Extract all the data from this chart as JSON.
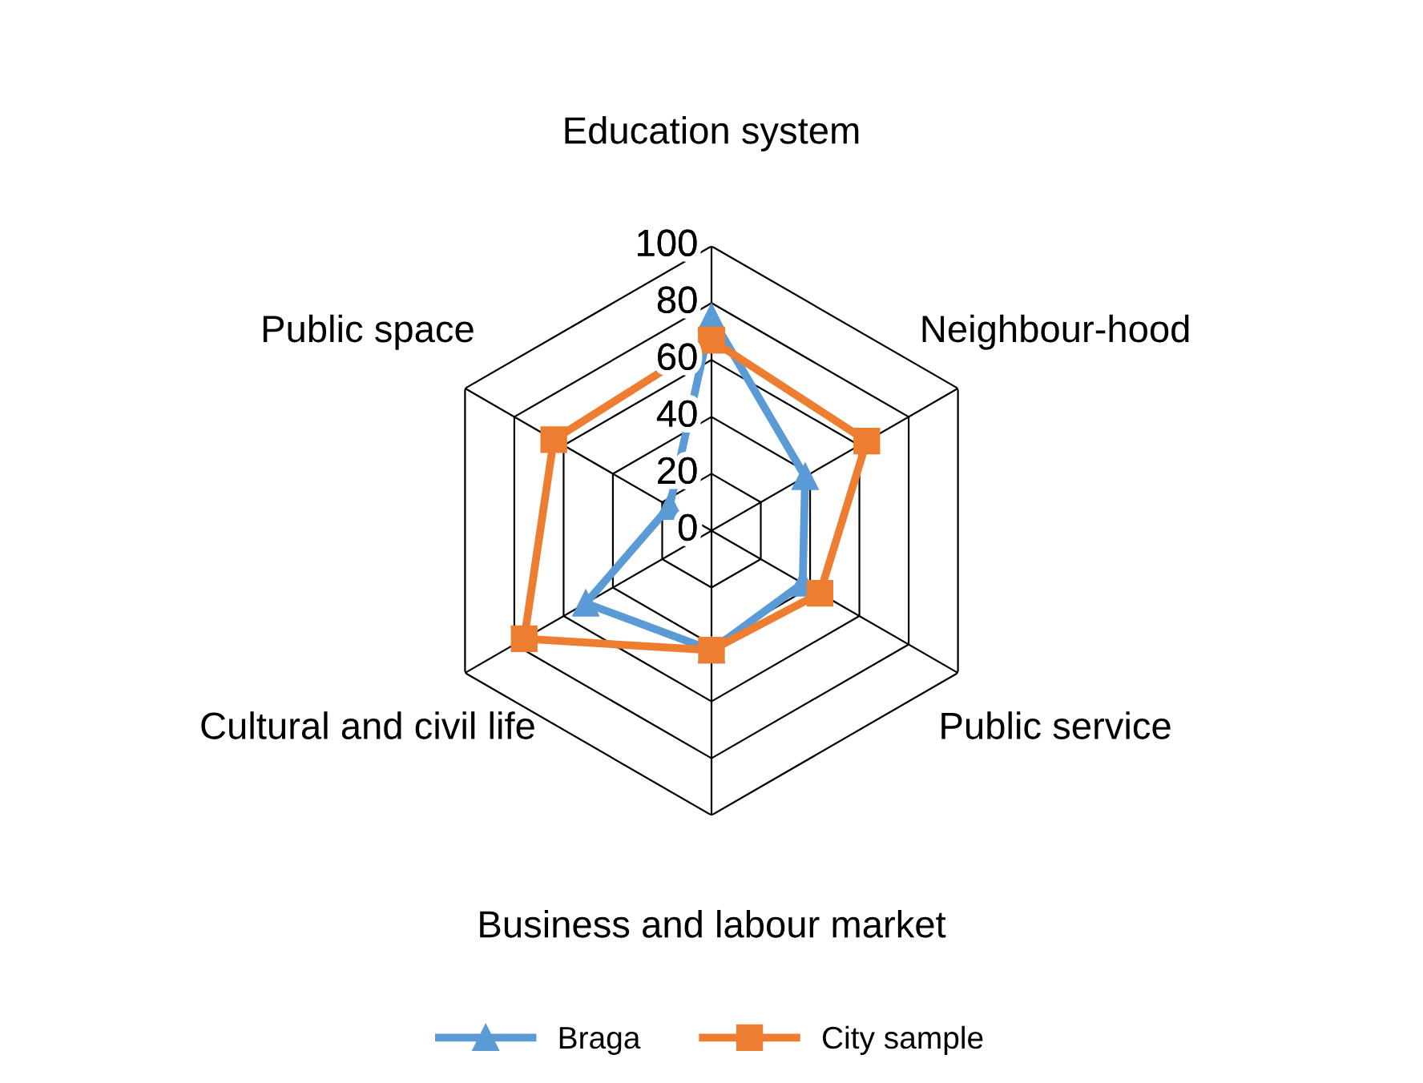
{
  "chart_data": {
    "type": "radar",
    "categories": [
      "Education system",
      "Neighbour-hood",
      "Public service",
      "Business and labour market",
      "Cultural and civil life",
      "Public space"
    ],
    "series": [
      {
        "name": "Braga",
        "color": "#5b9bd5",
        "marker": "triangle",
        "values": [
          75,
          38,
          37,
          42,
          51,
          17
        ]
      },
      {
        "name": "City sample",
        "color": "#ed7d31",
        "marker": "square",
        "values": [
          67,
          63,
          44,
          42,
          76,
          64
        ]
      }
    ],
    "ylim": [
      0,
      100
    ],
    "yticks": [
      0,
      20,
      40,
      60,
      80,
      100
    ],
    "grid": true,
    "legend": "bottom"
  }
}
